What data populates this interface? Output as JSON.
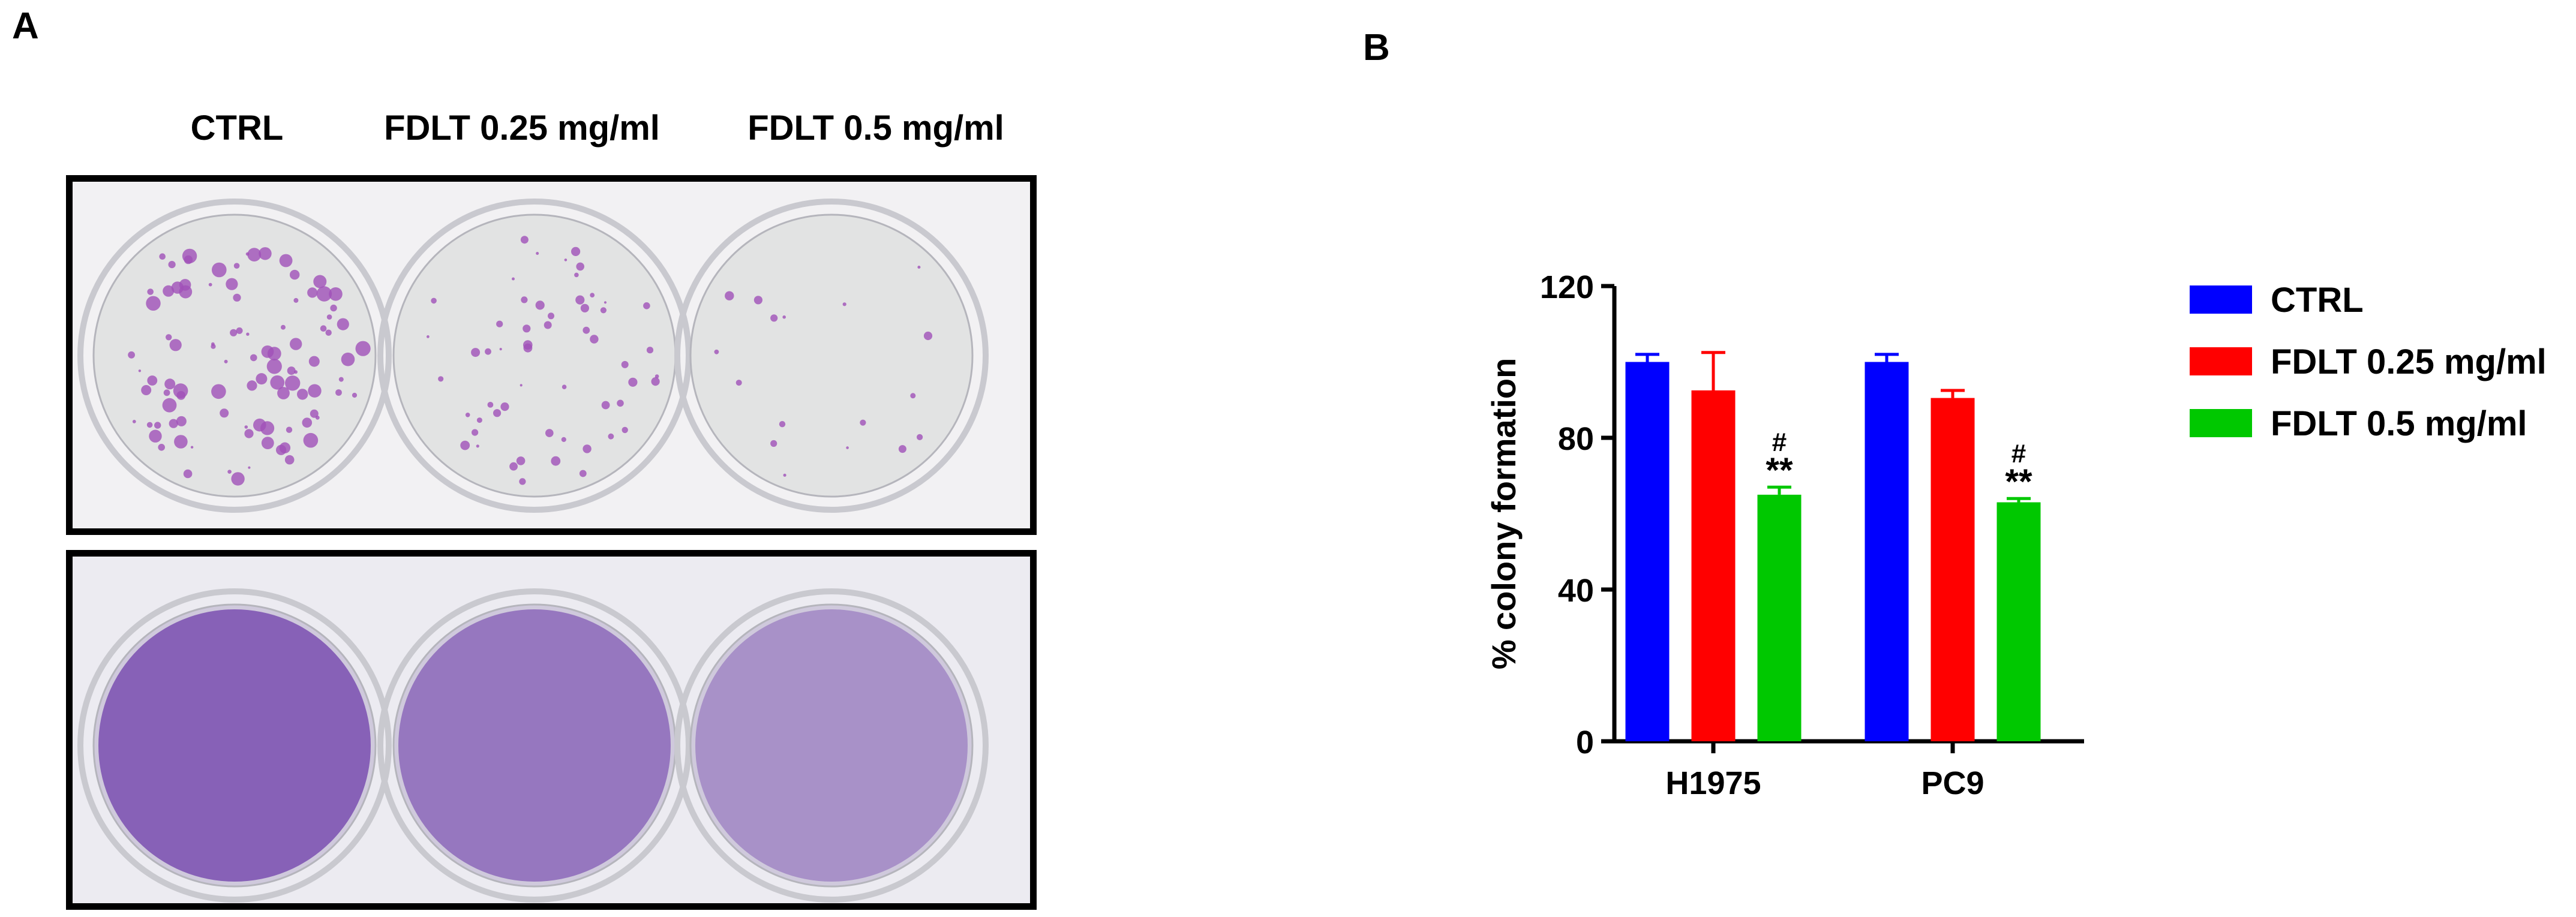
{
  "panel_a": {
    "letter": "A",
    "columns": [
      "CTRL",
      "FDLT 0.25 mg/ml",
      "FDLT 0.5 mg/ml"
    ],
    "photos": [
      {
        "name": "sparse-colony-plate",
        "plate_bg": "#f2f1f3",
        "well_bg": "#e2e3e3",
        "stain": "#a050b8",
        "stain_density": [
          1.0,
          0.55,
          0.12
        ]
      },
      {
        "name": "dense-stain-plate",
        "plate_bg": "#ecebf1",
        "well_bg": "#cfc9dc",
        "stain": "#7a4fb0",
        "stain_density": [
          1.0,
          0.7,
          0.35
        ]
      }
    ]
  },
  "panel_b": {
    "letter": "B",
    "chart_data": {
      "type": "bar",
      "categories": [
        "H1975",
        "PC9"
      ],
      "series": [
        {
          "name": "CTRL",
          "color": "#0000ff",
          "values": [
            100,
            100
          ],
          "errors": [
            2,
            2
          ]
        },
        {
          "name": "FDLT 0.25 mg/ml",
          "color": "#ff0000",
          "values": [
            92.5,
            90.5
          ],
          "errors": [
            10,
            2
          ]
        },
        {
          "name": "FDLT 0.5 mg/ml",
          "color": "#00c800",
          "values": [
            65,
            63
          ],
          "errors": [
            2,
            1
          ]
        }
      ],
      "annotations": [
        {
          "category": "H1975",
          "series": "FDLT 0.5 mg/ml",
          "lines": [
            "#",
            "**"
          ]
        },
        {
          "category": "PC9",
          "series": "FDLT 0.5 mg/ml",
          "lines": [
            "#",
            "**"
          ]
        }
      ],
      "ylabel": "% colony formation",
      "xlabel": "",
      "ylim": [
        0,
        120
      ],
      "yticks": [
        0,
        40,
        80,
        120
      ],
      "legend_position": "right"
    }
  }
}
